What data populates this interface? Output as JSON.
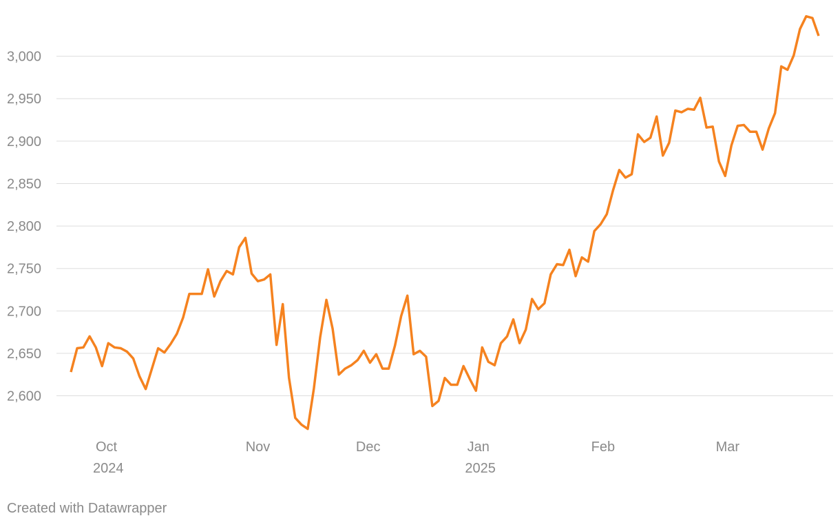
{
  "chart_data": {
    "type": "line",
    "footer": "Created with Datawrapper",
    "color": "#f5821f",
    "grid": true,
    "values": [
      2628,
      2656,
      2657,
      2670,
      2657,
      2635,
      2662,
      2657,
      2656,
      2652,
      2644,
      2623,
      2608,
      2632,
      2656,
      2651,
      2661,
      2673,
      2692,
      2720,
      2720,
      2720,
      2749,
      2717,
      2735,
      2747,
      2743,
      2775,
      2786,
      2744,
      2735,
      2737,
      2743,
      2660,
      2708,
      2621,
      2574,
      2566,
      2561,
      2609,
      2669,
      2713,
      2679,
      2625,
      2632,
      2636,
      2642,
      2653,
      2639,
      2649,
      2632,
      2632,
      2659,
      2694,
      2718,
      2649,
      2653,
      2646,
      2588,
      2594,
      2621,
      2613,
      2613,
      2635,
      2620,
      2606,
      2657,
      2640,
      2636,
      2662,
      2670,
      2690,
      2662,
      2678,
      2714,
      2702,
      2709,
      2743,
      2755,
      2754,
      2772,
      2741,
      2763,
      2758,
      2794,
      2802,
      2814,
      2842,
      2866,
      2857,
      2861,
      2908,
      2899,
      2904,
      2929,
      2883,
      2898,
      2936,
      2934,
      2938,
      2937,
      2951,
      2916,
      2917,
      2876,
      2859,
      2895,
      2918,
      2919,
      2911,
      2911,
      2890,
      2915,
      2933,
      2988,
      2984,
      3001,
      3032,
      3047,
      3045,
      3024
    ],
    "xlim": [
      0,
      120
    ],
    "xticks": [
      {
        "value": 6,
        "label": "Oct 2024"
      },
      {
        "value": 30,
        "label": "Nov"
      },
      {
        "value": 47.7,
        "label": "Dec"
      },
      {
        "value": 65.7,
        "label": "Jan 2025"
      },
      {
        "value": 85.4,
        "label": "Feb"
      },
      {
        "value": 105.4,
        "label": "Mar"
      }
    ],
    "ylim": [
      2555,
      3050
    ],
    "yticks": [
      {
        "value": 2600,
        "label": "2,600"
      },
      {
        "value": 2650,
        "label": "2,650"
      },
      {
        "value": 2700,
        "label": "2,700"
      },
      {
        "value": 2750,
        "label": "2,750"
      },
      {
        "value": 2800,
        "label": "2,800"
      },
      {
        "value": 2850,
        "label": "2,850"
      },
      {
        "value": 2900,
        "label": "2,900"
      },
      {
        "value": 2950,
        "label": "2,950"
      },
      {
        "value": 3000,
        "label": "3,000"
      }
    ]
  }
}
